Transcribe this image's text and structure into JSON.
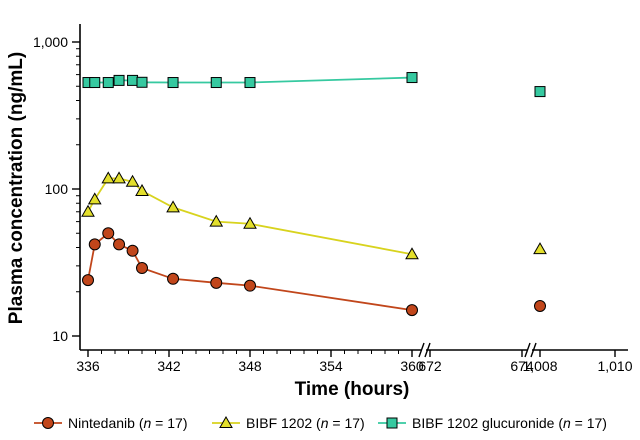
{
  "chart_data": {
    "type": "line",
    "title": "",
    "xlabel": "Time (hours)",
    "ylabel": "Plasma concentration (ng/mL)",
    "yscale": "log",
    "ylim": [
      10,
      1000
    ],
    "y_ticks": [
      {
        "value": 10,
        "label": "10"
      },
      {
        "value": 100,
        "label": "100"
      },
      {
        "value": 1000,
        "label": "1,000"
      }
    ],
    "x_segments": [
      {
        "range": [
          336,
          360
        ],
        "ticks": [
          336,
          342,
          348,
          354,
          360
        ],
        "tick_labels": [
          "336",
          "342",
          "348",
          "354",
          "360"
        ]
      },
      {
        "range": [
          672,
          674
        ],
        "ticks": [
          672,
          674
        ],
        "tick_labels": [
          "672",
          "674"
        ]
      },
      {
        "range": [
          1008,
          1010
        ],
        "ticks": [
          1008,
          1010
        ],
        "tick_labels": [
          "1,008",
          "1,010"
        ]
      }
    ],
    "axis_breaks": true,
    "legend_position": "bottom",
    "series": [
      {
        "name": "Nintedanib",
        "n_label": "n = 17",
        "marker": "circle",
        "color": "#c1461b",
        "points": [
          {
            "x": 336,
            "y": 24
          },
          {
            "x": 336.5,
            "y": 42
          },
          {
            "x": 337.5,
            "y": 50
          },
          {
            "x": 338.3,
            "y": 42
          },
          {
            "x": 339.3,
            "y": 38
          },
          {
            "x": 340,
            "y": 29
          },
          {
            "x": 342.3,
            "y": 24.5
          },
          {
            "x": 345.5,
            "y": 23
          },
          {
            "x": 348,
            "y": 22
          },
          {
            "x": 360,
            "y": 15
          }
        ],
        "extra_points": [
          {
            "x": 1008,
            "y": 16
          }
        ]
      },
      {
        "name": "BIBF 1202",
        "n_label": "n = 17",
        "marker": "triangle",
        "color": "#e3df2c",
        "points": [
          {
            "x": 336,
            "y": 70
          },
          {
            "x": 336.5,
            "y": 85
          },
          {
            "x": 337.5,
            "y": 118
          },
          {
            "x": 338.3,
            "y": 118
          },
          {
            "x": 339.3,
            "y": 112
          },
          {
            "x": 340,
            "y": 97
          },
          {
            "x": 342.3,
            "y": 75
          },
          {
            "x": 345.5,
            "y": 60
          },
          {
            "x": 348,
            "y": 58
          },
          {
            "x": 360,
            "y": 36
          }
        ],
        "extra_points": [
          {
            "x": 1008,
            "y": 39
          }
        ]
      },
      {
        "name": "BIBF 1202 glucuronide",
        "n_label": "n = 17",
        "marker": "square",
        "color": "#36c9a0",
        "points": [
          {
            "x": 336,
            "y": 530
          },
          {
            "x": 336.5,
            "y": 530
          },
          {
            "x": 337.5,
            "y": 530
          },
          {
            "x": 338.3,
            "y": 548
          },
          {
            "x": 339.3,
            "y": 548
          },
          {
            "x": 340,
            "y": 532
          },
          {
            "x": 342.3,
            "y": 530
          },
          {
            "x": 345.5,
            "y": 530
          },
          {
            "x": 348,
            "y": 530
          },
          {
            "x": 360,
            "y": 573
          }
        ],
        "extra_points": [
          {
            "x": 1008,
            "y": 460
          }
        ]
      }
    ]
  }
}
